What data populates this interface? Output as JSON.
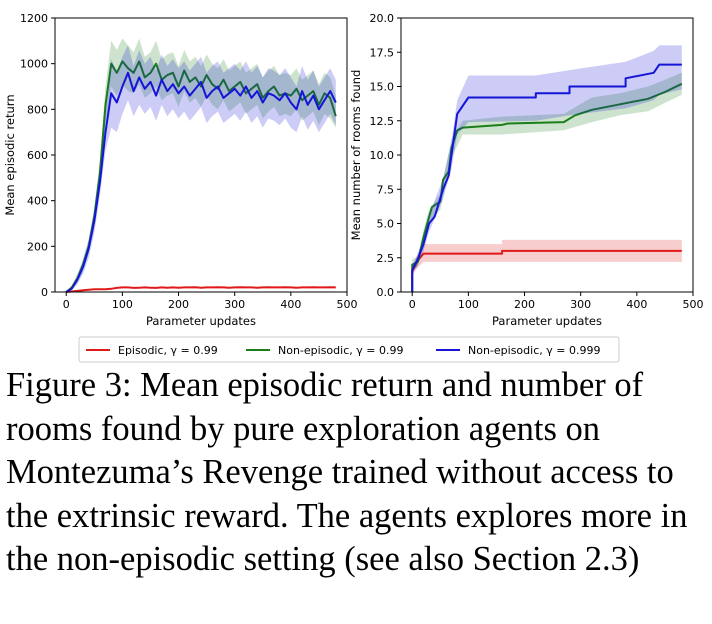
{
  "figure": {
    "caption": "Figure 3: Mean episodic return and number of rooms found by pure exploration agents on Montezuma’s Revenge trained without access to the extrinsic reward. The agents explores more in the non-episodic setting (see also Section 2.3)",
    "legend": [
      {
        "label": "Episodic, γ = 0.99",
        "color": "#e01a1a"
      },
      {
        "label": "Non-episodic, γ = 0.99",
        "color": "#1a7f1a"
      },
      {
        "label": "Non-episodic, γ = 0.999",
        "color": "#1515d8"
      }
    ]
  },
  "chart_data": [
    {
      "type": "line",
      "title": "",
      "xlabel": "Parameter updates",
      "ylabel": "Mean episodic return",
      "xlim": [
        -20,
        500
      ],
      "ylim": [
        0,
        1200
      ],
      "xticks": [
        "0",
        "100",
        "200",
        "300",
        "400",
        "500"
      ],
      "yticks": [
        "0",
        "200",
        "400",
        "600",
        "800",
        "1000",
        "1200"
      ],
      "grid": false,
      "x": [
        0,
        10,
        20,
        30,
        40,
        50,
        60,
        70,
        80,
        90,
        100,
        110,
        120,
        130,
        140,
        150,
        160,
        170,
        180,
        190,
        200,
        210,
        220,
        230,
        240,
        250,
        260,
        270,
        280,
        290,
        300,
        310,
        320,
        330,
        340,
        350,
        360,
        370,
        380,
        390,
        400,
        410,
        420,
        430,
        440,
        450,
        460,
        470,
        480
      ],
      "series": [
        {
          "name": "Episodic, γ = 0.99",
          "color": "#e01a1a",
          "values": [
            0,
            2,
            5,
            8,
            10,
            12,
            12,
            12,
            14,
            18,
            20,
            20,
            18,
            19,
            20,
            19,
            18,
            20,
            19,
            20,
            19,
            20,
            20,
            21,
            19,
            20,
            20,
            21,
            20,
            19,
            20,
            21,
            20,
            20,
            19,
            20,
            21,
            20,
            20,
            21,
            20,
            19,
            20,
            20,
            21,
            20,
            20,
            21,
            20
          ],
          "lower": [
            0,
            1,
            3,
            6,
            8,
            10,
            10,
            10,
            12,
            15,
            17,
            17,
            16,
            16,
            17,
            16,
            15,
            17,
            16,
            17,
            16,
            17,
            17,
            18,
            16,
            17,
            17,
            18,
            17,
            16,
            17,
            18,
            17,
            17,
            16,
            17,
            18,
            17,
            17,
            18,
            17,
            16,
            17,
            17,
            18,
            17,
            17,
            18,
            17
          ],
          "upper": [
            0,
            3,
            7,
            10,
            12,
            14,
            14,
            14,
            16,
            21,
            23,
            23,
            21,
            22,
            23,
            22,
            21,
            23,
            22,
            23,
            22,
            23,
            23,
            24,
            22,
            23,
            23,
            24,
            23,
            22,
            23,
            24,
            23,
            23,
            22,
            23,
            24,
            23,
            23,
            24,
            23,
            22,
            23,
            23,
            24,
            23,
            23,
            24,
            23
          ]
        },
        {
          "name": "Non-episodic, γ = 0.99",
          "color": "#1a7f1a",
          "values": [
            0,
            20,
            60,
            120,
            200,
            330,
            520,
            820,
            1000,
            960,
            1010,
            980,
            960,
            1010,
            940,
            960,
            1000,
            930,
            950,
            960,
            900,
            970,
            920,
            940,
            900,
            950,
            910,
            890,
            930,
            880,
            900,
            920,
            870,
            890,
            910,
            850,
            880,
            900,
            860,
            870,
            860,
            890,
            840,
            860,
            880,
            820,
            870,
            850,
            770
          ],
          "lower": [
            0,
            10,
            40,
            95,
            170,
            290,
            460,
            740,
            900,
            860,
            910,
            880,
            870,
            910,
            850,
            870,
            900,
            840,
            860,
            870,
            810,
            880,
            830,
            850,
            810,
            860,
            820,
            800,
            840,
            790,
            810,
            830,
            780,
            800,
            820,
            760,
            790,
            810,
            770,
            780,
            770,
            800,
            750,
            770,
            790,
            730,
            780,
            760,
            720
          ],
          "upper": [
            0,
            30,
            80,
            145,
            230,
            370,
            580,
            900,
            1100,
            1060,
            1110,
            1080,
            1050,
            1110,
            1030,
            1050,
            1100,
            1020,
            1040,
            1050,
            990,
            1060,
            1010,
            1030,
            990,
            1040,
            1000,
            980,
            1020,
            970,
            990,
            1010,
            960,
            980,
            1000,
            940,
            970,
            990,
            950,
            960,
            950,
            980,
            930,
            950,
            970,
            910,
            960,
            940,
            860
          ]
        },
        {
          "name": "Non-episodic, γ = 0.999",
          "color": "#1515d8",
          "values": [
            0,
            15,
            55,
            110,
            190,
            310,
            480,
            700,
            870,
            830,
            900,
            960,
            880,
            940,
            890,
            920,
            860,
            930,
            880,
            910,
            870,
            900,
            860,
            890,
            920,
            850,
            880,
            900,
            850,
            870,
            890,
            860,
            900,
            850,
            880,
            830,
            870,
            860,
            840,
            870,
            830,
            800,
            880,
            820,
            860,
            800,
            840,
            880,
            830
          ],
          "lower": [
            0,
            8,
            35,
            80,
            150,
            260,
            420,
            620,
            720,
            700,
            780,
            840,
            770,
            820,
            780,
            810,
            750,
            820,
            770,
            800,
            760,
            790,
            750,
            780,
            810,
            740,
            770,
            790,
            740,
            760,
            780,
            750,
            790,
            740,
            770,
            720,
            760,
            750,
            730,
            760,
            720,
            700,
            770,
            710,
            750,
            700,
            740,
            780,
            730
          ],
          "upper": [
            0,
            22,
            75,
            140,
            230,
            360,
            540,
            780,
            1020,
            960,
            1030,
            1080,
            990,
            1060,
            1000,
            1030,
            970,
            1040,
            990,
            1020,
            980,
            1010,
            970,
            1000,
            1030,
            960,
            990,
            1010,
            960,
            980,
            1000,
            970,
            1010,
            960,
            990,
            940,
            980,
            970,
            950,
            980,
            940,
            900,
            990,
            930,
            970,
            900,
            940,
            980,
            930
          ]
        }
      ]
    },
    {
      "type": "line",
      "title": "",
      "xlabel": "Parameter updates",
      "ylabel": "Mean number of rooms found",
      "xlim": [
        -20,
        500
      ],
      "ylim": [
        0,
        20
      ],
      "xticks": [
        "0",
        "100",
        "200",
        "300",
        "400",
        "500"
      ],
      "yticks": [
        "0.0",
        "2.5",
        "5.0",
        "7.5",
        "10.0",
        "12.5",
        "15.0",
        "17.5",
        "20.0"
      ],
      "grid": false,
      "series": [
        {
          "name": "Episodic, γ = 0.99",
          "color": "#e01a1a",
          "points": [
            [
              0,
              0
            ],
            [
              0,
              1.5
            ],
            [
              10,
              2.3
            ],
            [
              20,
              2.8
            ],
            [
              160,
              2.8
            ],
            [
              160,
              3.0
            ],
            [
              480,
              3.0
            ]
          ],
          "lower": [
            [
              0,
              0
            ],
            [
              0,
              1.2
            ],
            [
              10,
              1.8
            ],
            [
              20,
              2.2
            ],
            [
              480,
              2.2
            ]
          ],
          "upper": [
            [
              0,
              0
            ],
            [
              0,
              1.8
            ],
            [
              10,
              2.8
            ],
            [
              20,
              3.5
            ],
            [
              160,
              3.5
            ],
            [
              160,
              3.8
            ],
            [
              480,
              3.8
            ]
          ]
        },
        {
          "name": "Non-episodic, γ = 0.99",
          "color": "#1a7f1a",
          "points": [
            [
              0,
              0
            ],
            [
              0,
              2.0
            ],
            [
              10,
              2.2
            ],
            [
              20,
              4.0
            ],
            [
              30,
              5.5
            ],
            [
              35,
              6.2
            ],
            [
              50,
              6.6
            ],
            [
              55,
              8.2
            ],
            [
              65,
              8.8
            ],
            [
              70,
              10.5
            ],
            [
              80,
              11.8
            ],
            [
              90,
              12.0
            ],
            [
              160,
              12.2
            ],
            [
              170,
              12.3
            ],
            [
              270,
              12.4
            ],
            [
              290,
              12.9
            ],
            [
              320,
              13.3
            ],
            [
              370,
              13.7
            ],
            [
              420,
              14.1
            ],
            [
              450,
              14.6
            ],
            [
              480,
              15.2
            ]
          ],
          "lower": [
            [
              0,
              0
            ],
            [
              0,
              1.6
            ],
            [
              10,
              1.8
            ],
            [
              20,
              3.5
            ],
            [
              30,
              5.0
            ],
            [
              50,
              6.0
            ],
            [
              70,
              9.8
            ],
            [
              90,
              11.5
            ],
            [
              160,
              11.5
            ],
            [
              270,
              11.8
            ],
            [
              320,
              12.4
            ],
            [
              370,
              12.9
            ],
            [
              420,
              13.2
            ],
            [
              450,
              13.8
            ],
            [
              480,
              14.4
            ]
          ],
          "upper": [
            [
              0,
              0
            ],
            [
              0,
              2.4
            ],
            [
              10,
              2.6
            ],
            [
              20,
              4.5
            ],
            [
              30,
              6.0
            ],
            [
              50,
              7.2
            ],
            [
              70,
              11.2
            ],
            [
              90,
              12.5
            ],
            [
              160,
              12.8
            ],
            [
              270,
              13.0
            ],
            [
              320,
              14.2
            ],
            [
              370,
              14.5
            ],
            [
              420,
              15.0
            ],
            [
              450,
              15.5
            ],
            [
              480,
              16.0
            ]
          ]
        },
        {
          "name": "Non-episodic, γ = 0.999",
          "color": "#1515d8",
          "points": [
            [
              0,
              0
            ],
            [
              0,
              1.6
            ],
            [
              10,
              2.4
            ],
            [
              20,
              3.5
            ],
            [
              30,
              5.0
            ],
            [
              40,
              5.5
            ],
            [
              55,
              7.5
            ],
            [
              65,
              8.5
            ],
            [
              70,
              10.0
            ],
            [
              80,
              13.0
            ],
            [
              100,
              14.2
            ],
            [
              220,
              14.2
            ],
            [
              220,
              14.5
            ],
            [
              280,
              14.5
            ],
            [
              280,
              15.0
            ],
            [
              380,
              15.0
            ],
            [
              380,
              15.6
            ],
            [
              430,
              16.0
            ],
            [
              440,
              16.6
            ],
            [
              480,
              16.6
            ]
          ],
          "lower": [
            [
              0,
              0
            ],
            [
              0,
              1.3
            ],
            [
              10,
              2.0
            ],
            [
              20,
              3.0
            ],
            [
              30,
              4.4
            ],
            [
              55,
              6.8
            ],
            [
              70,
              9.0
            ],
            [
              80,
              11.5
            ],
            [
              100,
              12.4
            ],
            [
              220,
              12.5
            ],
            [
              280,
              12.9
            ],
            [
              380,
              13.4
            ],
            [
              430,
              14.0
            ],
            [
              440,
              14.4
            ],
            [
              480,
              14.8
            ]
          ],
          "upper": [
            [
              0,
              0
            ],
            [
              0,
              1.9
            ],
            [
              10,
              2.8
            ],
            [
              20,
              4.0
            ],
            [
              30,
              5.6
            ],
            [
              55,
              8.3
            ],
            [
              70,
              11.0
            ],
            [
              80,
              14.0
            ],
            [
              100,
              15.8
            ],
            [
              220,
              15.8
            ],
            [
              280,
              16.2
            ],
            [
              380,
              16.8
            ],
            [
              430,
              17.6
            ],
            [
              440,
              18.0
            ],
            [
              480,
              18.0
            ]
          ]
        }
      ]
    }
  ]
}
